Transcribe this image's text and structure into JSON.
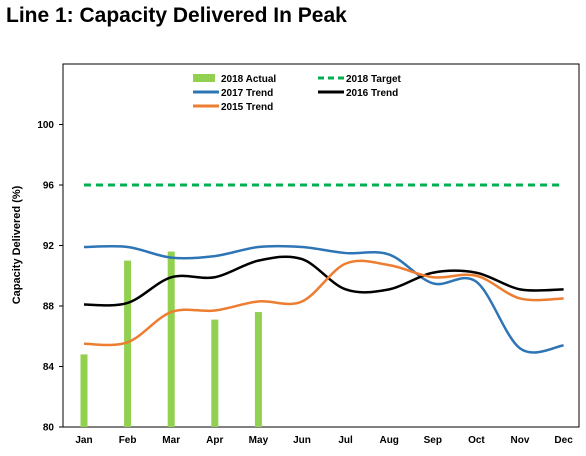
{
  "header": {
    "title": "Line 1: Capacity Delivered In Peak"
  },
  "chart_data": {
    "type": "line",
    "title": "Line 1: Capacity Delivered In Peak",
    "xlabel": "",
    "ylabel": "Capacity Delivered (%)",
    "ylim": [
      80,
      104
    ],
    "yticks": [
      80,
      84,
      88,
      92,
      96,
      100
    ],
    "grid": false,
    "legend_position": "top",
    "categories": [
      "Jan",
      "Feb",
      "Mar",
      "Apr",
      "May",
      "Jun",
      "Jul",
      "Aug",
      "Sep",
      "Oct",
      "Nov",
      "Dec"
    ],
    "series": [
      {
        "name": "2018 Actual",
        "kind": "bar",
        "color": "#92d050",
        "values": [
          84.8,
          91.0,
          91.6,
          87.1,
          87.6,
          null,
          null,
          null,
          null,
          null,
          null,
          null
        ]
      },
      {
        "name": "2018 Target",
        "kind": "line",
        "style": "dashed",
        "color": "#00b050",
        "values": [
          96,
          96,
          96,
          96,
          96,
          96,
          96,
          96,
          96,
          96,
          96,
          96
        ]
      },
      {
        "name": "2017 Trend",
        "kind": "line",
        "color": "#2e75b6",
        "values": [
          91.9,
          91.9,
          91.2,
          91.3,
          91.9,
          91.9,
          91.5,
          91.4,
          89.5,
          89.6,
          85.2,
          85.4
        ]
      },
      {
        "name": "2016 Trend",
        "kind": "line",
        "color": "#000000",
        "values": [
          88.1,
          88.2,
          89.9,
          89.9,
          91.0,
          91.1,
          89.1,
          89.1,
          90.2,
          90.2,
          89.1,
          89.1
        ]
      },
      {
        "name": "2015 Trend",
        "kind": "line",
        "color": "#ed7d31",
        "values": [
          85.5,
          85.6,
          87.6,
          87.7,
          88.3,
          88.3,
          90.8,
          90.7,
          89.9,
          90.0,
          88.5,
          88.5
        ]
      }
    ]
  }
}
